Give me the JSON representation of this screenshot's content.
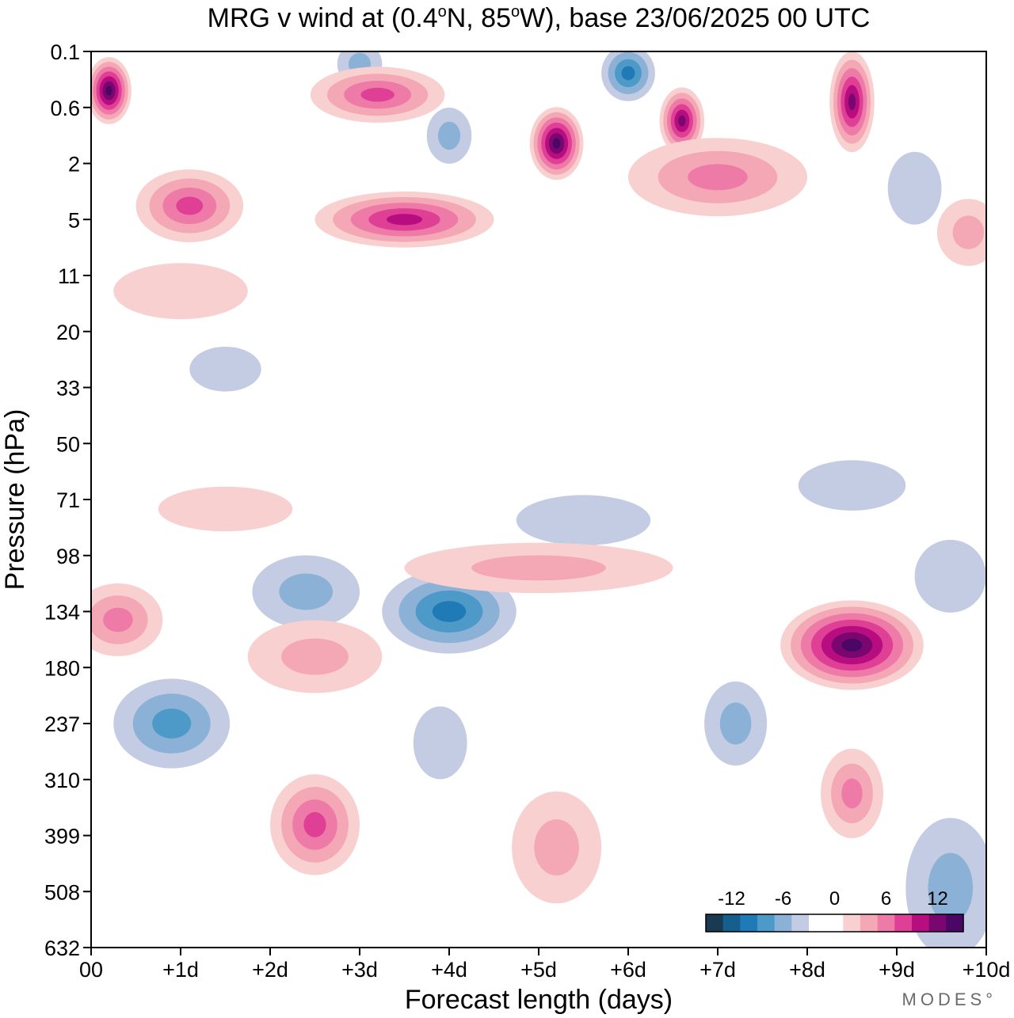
{
  "chart_data": {
    "type": "heatmap",
    "title_parts": {
      "prefix": "MRG v wind at (0.4",
      "deg1": "o",
      "mid": "N, 85",
      "deg2": "o",
      "suffix": "W),  base 23/06/2025  00 UTC"
    },
    "xlabel": "Forecast length (days)",
    "ylabel": "Pressure (hPa)",
    "x_ticks": [
      "00",
      "+1d",
      "+2d",
      "+3d",
      "+4d",
      "+5d",
      "+6d",
      "+7d",
      "+8d",
      "+9d",
      "+10d"
    ],
    "y_ticks": [
      "0.1",
      "0.6",
      "2",
      "5",
      "11",
      "20",
      "33",
      "50",
      "71",
      "98",
      "134",
      "180",
      "237",
      "310",
      "399",
      "508",
      "632"
    ],
    "xlim_days": [
      0,
      10
    ],
    "colorbar": {
      "labels": [
        "-12",
        "-6",
        "0",
        "6",
        "12"
      ],
      "colors": [
        "#1a3a52",
        "#155f8e",
        "#1f7ab5",
        "#4d99c8",
        "#8cb1d6",
        "#c3cce2",
        "#ffffff",
        "#ffffff",
        "#f9d0d0",
        "#f4a7b5",
        "#ee7aa8",
        "#e03f96",
        "#b80d80",
        "#7a0770",
        "#4b0766"
      ]
    },
    "features": [
      {
        "kind": "neg",
        "day": 0.9,
        "level": "237",
        "wd": 1.3,
        "hl": 1.6,
        "amp": 6
      },
      {
        "kind": "neg",
        "day": 4.0,
        "level": "134",
        "wd": 1.5,
        "hl": 1.5,
        "amp": 7
      },
      {
        "kind": "neg",
        "day": 2.4,
        "level": "120",
        "wd": 1.2,
        "hl": 1.3,
        "amp": 4
      },
      {
        "kind": "neg",
        "day": 7.2,
        "level": "237",
        "wd": 0.7,
        "hl": 1.5,
        "amp": 4
      },
      {
        "kind": "neg",
        "day": 3.9,
        "level": "260",
        "wd": 0.6,
        "hl": 1.3,
        "amp": 2.5
      },
      {
        "kind": "neg",
        "day": 9.6,
        "level": "500",
        "wd": 1.0,
        "hl": 2.5,
        "amp": 3
      },
      {
        "kind": "neg",
        "day": 5.5,
        "level": "80",
        "wd": 1.5,
        "hl": 0.9,
        "amp": 2
      },
      {
        "kind": "neg",
        "day": 9.6,
        "level": "110",
        "wd": 0.8,
        "hl": 1.3,
        "amp": 2.5
      },
      {
        "kind": "neg",
        "day": 8.5,
        "level": "65",
        "wd": 1.2,
        "hl": 0.9,
        "amp": 2
      },
      {
        "kind": "neg",
        "day": 6.0,
        "level": "0.2",
        "wd": 0.6,
        "hl": 1.0,
        "amp": 8
      },
      {
        "kind": "neg",
        "day": 4.0,
        "level": "1.1",
        "wd": 0.5,
        "hl": 1.0,
        "amp": 4
      },
      {
        "kind": "neg",
        "day": 9.2,
        "level": "3",
        "wd": 0.6,
        "hl": 1.3,
        "amp": 2.5
      },
      {
        "kind": "neg",
        "day": 3.0,
        "level": "0.15",
        "wd": 0.5,
        "hl": 0.8,
        "amp": 3
      },
      {
        "kind": "neg",
        "day": 1.5,
        "level": "28",
        "wd": 0.8,
        "hl": 0.8,
        "amp": 2
      },
      {
        "kind": "pos",
        "day": 8.5,
        "level": "160",
        "wd": 1.6,
        "hl": 1.6,
        "amp": 14
      },
      {
        "kind": "pos",
        "day": 8.5,
        "level": "330",
        "wd": 0.7,
        "hl": 1.6,
        "amp": 6
      },
      {
        "kind": "pos",
        "day": 2.5,
        "level": "380",
        "wd": 1.0,
        "hl": 1.8,
        "amp": 8
      },
      {
        "kind": "pos",
        "day": 5.2,
        "level": "420",
        "wd": 1.0,
        "hl": 2.0,
        "amp": 4
      },
      {
        "kind": "pos",
        "day": 0.3,
        "level": "140",
        "wd": 1.0,
        "hl": 1.3,
        "amp": 6
      },
      {
        "kind": "pos",
        "day": 2.5,
        "level": "170",
        "wd": 1.5,
        "hl": 1.3,
        "amp": 3
      },
      {
        "kind": "pos",
        "day": 5.0,
        "level": "105",
        "wd": 3.0,
        "hl": 0.9,
        "amp": 3
      },
      {
        "kind": "pos",
        "day": 1.5,
        "level": "75",
        "wd": 1.5,
        "hl": 0.8,
        "amp": 2.5
      },
      {
        "kind": "pos",
        "day": 0.2,
        "level": "0.35",
        "wd": 0.5,
        "hl": 1.2,
        "amp": 14
      },
      {
        "kind": "pos",
        "day": 5.2,
        "level": "1.3",
        "wd": 0.6,
        "hl": 1.3,
        "amp": 14
      },
      {
        "kind": "pos",
        "day": 6.6,
        "level": "0.8",
        "wd": 0.5,
        "hl": 1.2,
        "amp": 12
      },
      {
        "kind": "pos",
        "day": 8.5,
        "level": "0.5",
        "wd": 0.5,
        "hl": 1.8,
        "amp": 12
      },
      {
        "kind": "pos",
        "day": 3.5,
        "level": "5",
        "wd": 2.0,
        "hl": 1.0,
        "amp": 10
      },
      {
        "kind": "pos",
        "day": 1.1,
        "level": "4",
        "wd": 1.2,
        "hl": 1.3,
        "amp": 8
      },
      {
        "kind": "pos",
        "day": 3.2,
        "level": "0.4",
        "wd": 1.5,
        "hl": 1.0,
        "amp": 8
      },
      {
        "kind": "pos",
        "day": 7.0,
        "level": "2.5",
        "wd": 2.0,
        "hl": 1.4,
        "amp": 5
      },
      {
        "kind": "pos",
        "day": 9.8,
        "level": "6",
        "wd": 0.7,
        "hl": 1.2,
        "amp": 3
      },
      {
        "kind": "pos",
        "day": 1.0,
        "level": "13",
        "wd": 1.5,
        "hl": 1.0,
        "amp": 2.5
      }
    ]
  },
  "watermark": "MODES°"
}
